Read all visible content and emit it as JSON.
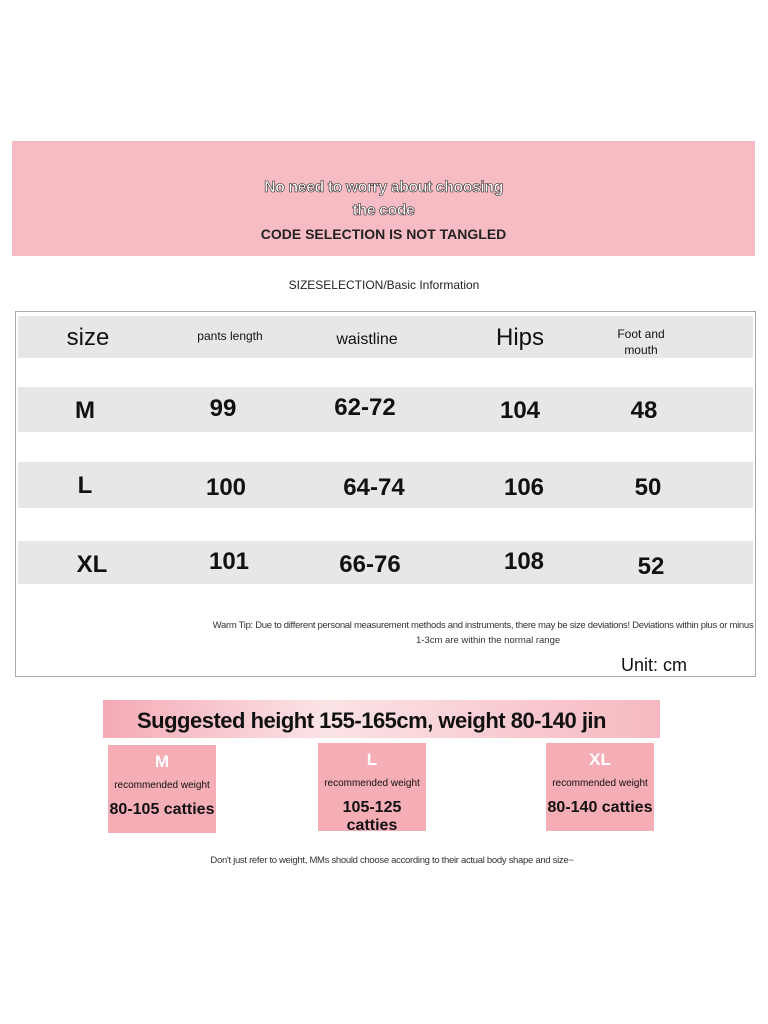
{
  "banner": {
    "line1": "No need to worry about choosing",
    "line2": "the code",
    "line3": "CODE SELECTION IS NOT TANGLED"
  },
  "subtitle": "SIZESELECTION/Basic Information",
  "table": {
    "headers": [
      "size",
      "pants length",
      "waistline",
      "Hips",
      "Foot and mouth"
    ],
    "rows": [
      [
        "M",
        "99",
        "62-72",
        "104",
        "48"
      ],
      [
        "L",
        "100",
        "64-74",
        "106",
        "50"
      ],
      [
        "XL",
        "101",
        "66-76",
        "108",
        "52"
      ]
    ]
  },
  "tip": {
    "line1": "Warm Tip: Due to different personal measurement methods and instruments, there may be size deviations! Deviations within plus or minus",
    "line2": "1-3cm are within the normal range"
  },
  "unit": "Unit: cm",
  "suggestion": "Suggested height 155-165cm, weight 80-140 jin",
  "cards": [
    {
      "size": "M",
      "label": "recommended weight",
      "weight": "80-105 catties"
    },
    {
      "size": "L",
      "label": "recommended weight",
      "weight": "105-125 catties"
    },
    {
      "size": "XL",
      "label": "recommended weight",
      "weight": "80-140 catties"
    }
  ],
  "footnote": "Don't just refer to weight, MMs should choose according to their actual body shape and size~",
  "colors": {
    "pink": "#f7bcc3",
    "card_pink": "#f5adb6",
    "row_gray": "#e7e7e7"
  }
}
